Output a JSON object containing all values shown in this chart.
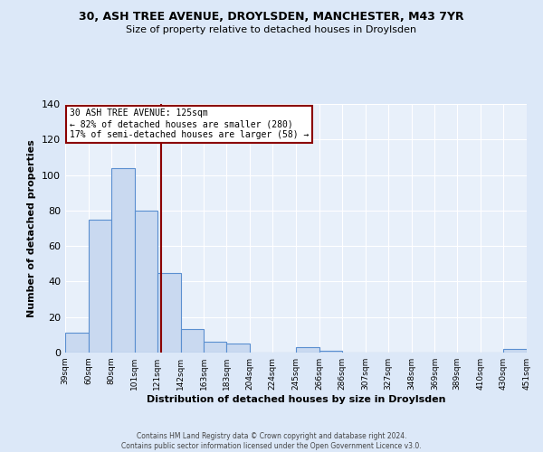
{
  "title": "30, ASH TREE AVENUE, DROYLSDEN, MANCHESTER, M43 7YR",
  "subtitle": "Size of property relative to detached houses in Droylsden",
  "xlabel": "Distribution of detached houses by size in Droylsden",
  "ylabel": "Number of detached properties",
  "bar_edges": [
    39,
    60,
    80,
    101,
    121,
    142,
    163,
    183,
    204,
    224,
    245,
    266,
    286,
    307,
    327,
    348,
    369,
    389,
    410,
    430,
    451
  ],
  "bar_heights": [
    11,
    75,
    104,
    80,
    45,
    13,
    6,
    5,
    0,
    0,
    3,
    1,
    0,
    0,
    0,
    0,
    0,
    0,
    0,
    2
  ],
  "bar_color": "#c9d9f0",
  "bar_edge_color": "#5a8fd0",
  "vline_x": 125,
  "vline_color": "#8b0000",
  "annotation_title": "30 ASH TREE AVENUE: 125sqm",
  "annotation_line1": "← 82% of detached houses are smaller (280)",
  "annotation_line2": "17% of semi-detached houses are larger (58) →",
  "annotation_box_color": "#ffffff",
  "annotation_box_edge": "#8b0000",
  "ylim": [
    0,
    140
  ],
  "yticks": [
    0,
    20,
    40,
    60,
    80,
    100,
    120,
    140
  ],
  "tick_labels": [
    "39sqm",
    "60sqm",
    "80sqm",
    "101sqm",
    "121sqm",
    "142sqm",
    "163sqm",
    "183sqm",
    "204sqm",
    "224sqm",
    "245sqm",
    "266sqm",
    "286sqm",
    "307sqm",
    "327sqm",
    "348sqm",
    "369sqm",
    "389sqm",
    "410sqm",
    "430sqm",
    "451sqm"
  ],
  "footer1": "Contains HM Land Registry data © Crown copyright and database right 2024.",
  "footer2": "Contains public sector information licensed under the Open Government Licence v3.0.",
  "background_color": "#dce8f8",
  "plot_bg_color": "#e8f0fa"
}
